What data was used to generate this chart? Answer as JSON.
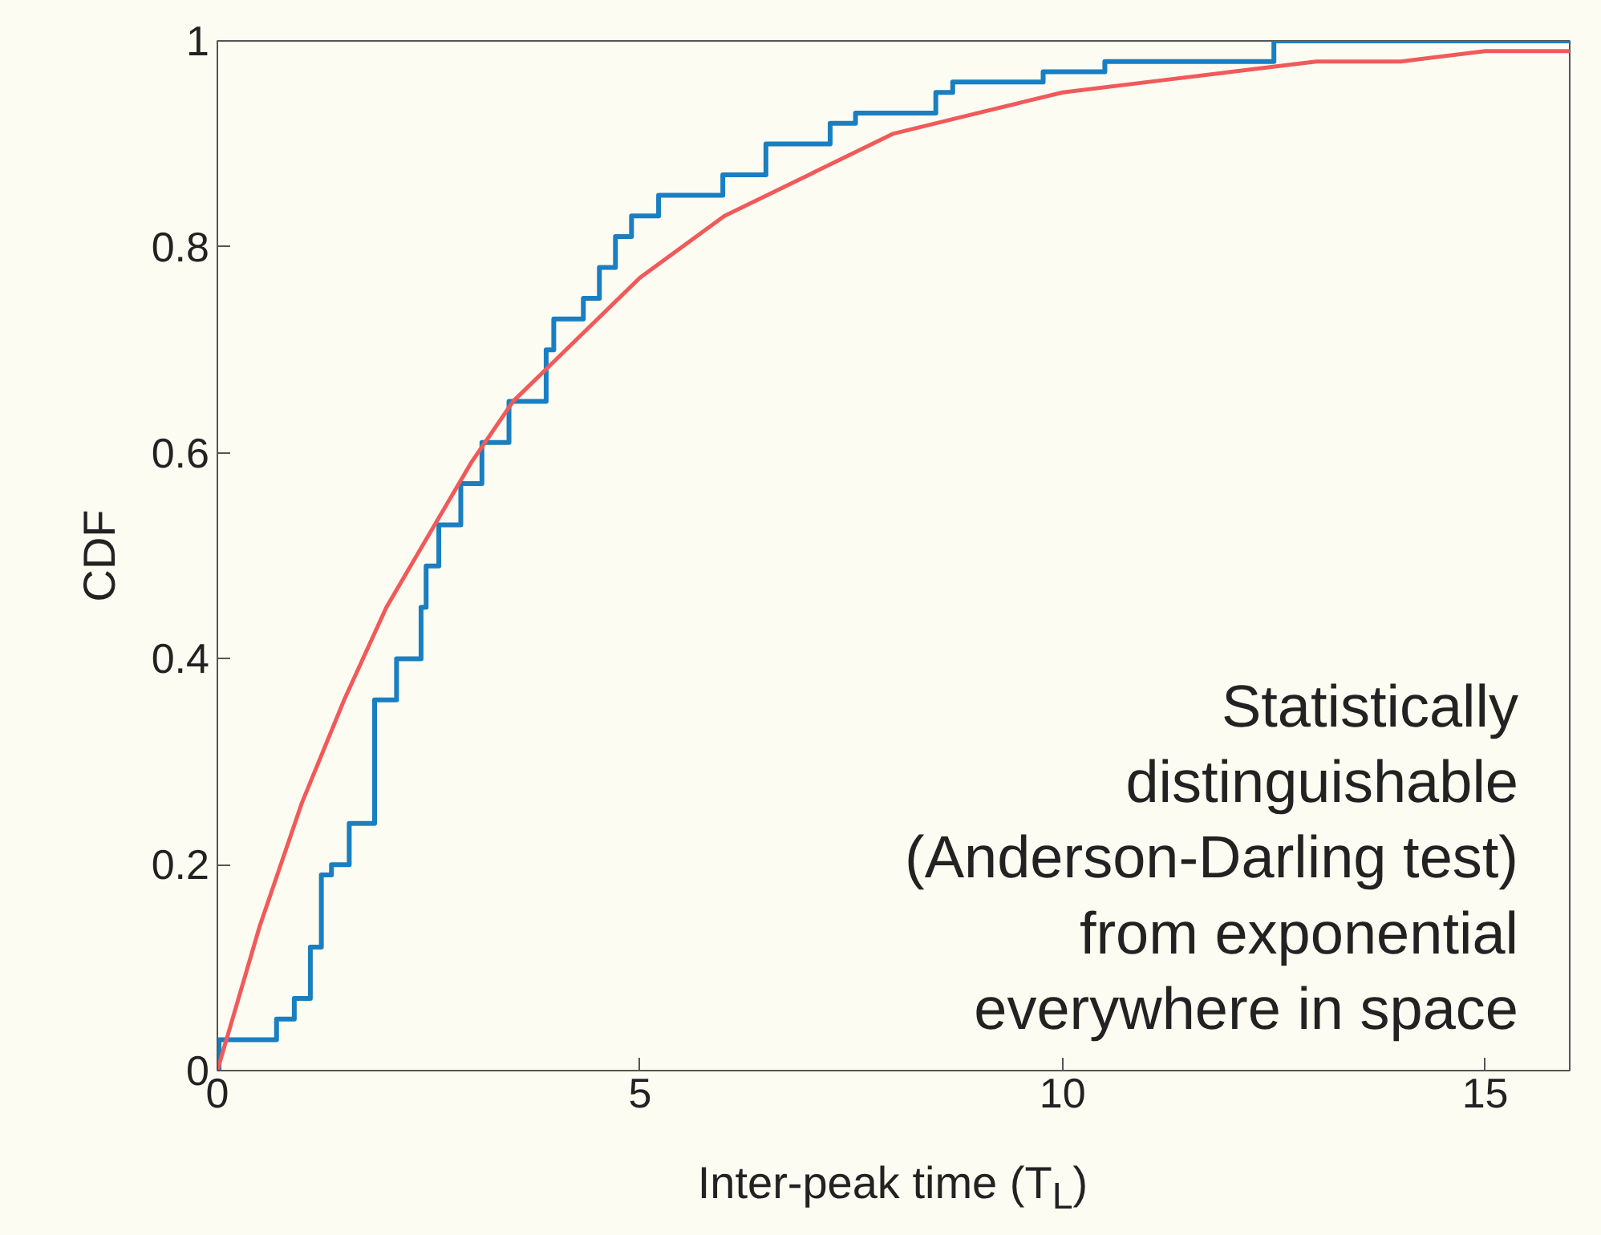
{
  "chart_data": {
    "type": "line",
    "xlabel": "Inter-peak time (T$_{L}$)",
    "ylabel": "CDF",
    "xlim": [
      0,
      16
    ],
    "ylim": [
      0,
      1
    ],
    "xticks": [
      0,
      5,
      10,
      15
    ],
    "yticks": [
      0,
      {
        "value": 0.2,
        "label": "0.2"
      },
      {
        "value": 0.4,
        "label": "0.4"
      },
      {
        "value": 0.6,
        "label": "0.6"
      },
      {
        "value": 0.8,
        "label": "0.8"
      },
      1
    ],
    "grid": false,
    "series": [
      {
        "type": "step",
        "color": "#1a7fc1",
        "x": [
          0,
          0.02,
          0.47,
          0.7,
          0.91,
          1.1,
          1.23,
          1.35,
          1.56,
          1.86,
          2.12,
          2.41,
          2.47,
          2.62,
          2.88,
          3.13,
          3.45,
          3.89,
          3.98,
          4.33,
          4.52,
          4.71,
          4.9,
          5.22,
          5.98,
          6.49,
          7.25,
          7.55,
          8.5,
          8.7,
          9.77,
          10.5,
          12.3,
          12.5,
          16
        ],
        "values": [
          0,
          0.03,
          0.03,
          0.05,
          0.07,
          0.12,
          0.19,
          0.2,
          0.24,
          0.36,
          0.4,
          0.45,
          0.49,
          0.53,
          0.57,
          0.61,
          0.65,
          0.7,
          0.73,
          0.75,
          0.78,
          0.81,
          0.83,
          0.85,
          0.87,
          0.9,
          0.92,
          0.93,
          0.95,
          0.96,
          0.97,
          0.98,
          0.98,
          1,
          1
        ]
      },
      {
        "color": "#f05a5a",
        "x": [
          0,
          0.5,
          1,
          1.5,
          2,
          2.5,
          3,
          3.5,
          4,
          5,
          6,
          7,
          8,
          9,
          10,
          11,
          12,
          13,
          14,
          15,
          16
        ],
        "values": [
          0,
          0.14,
          0.26,
          0.36,
          0.45,
          0.52,
          0.59,
          0.65,
          0.69,
          0.77,
          0.83,
          0.87,
          0.91,
          0.93,
          0.95,
          0.96,
          0.97,
          0.98,
          0.98,
          0.99,
          0.99
        ]
      }
    ],
    "annotations": [
      "Statistically\ndistinguishable\n(Anderson-Darling test)\nfrom exponential\neverywhere in space"
    ]
  }
}
